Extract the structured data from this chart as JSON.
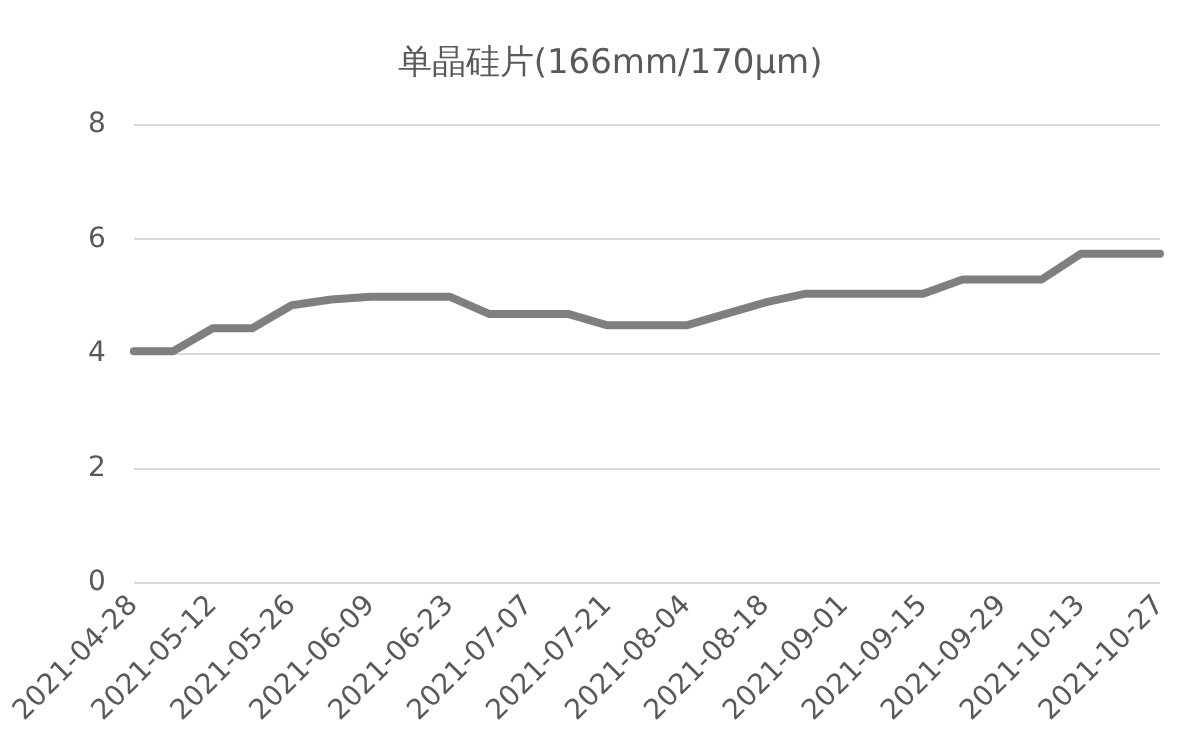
{
  "chart_data": {
    "type": "line",
    "title": "单晶硅片(166mm/170μm)",
    "categories": [
      "2021-04-28",
      null,
      "2021-05-12",
      null,
      "2021-05-26",
      null,
      "2021-06-09",
      null,
      "2021-06-23",
      null,
      "2021-07-07",
      null,
      "2021-07-21",
      null,
      "2021-08-04",
      null,
      "2021-08-18",
      null,
      "2021-09-01",
      null,
      "2021-09-15",
      null,
      "2021-09-29",
      null,
      "2021-10-13",
      null,
      "2021-10-27"
    ],
    "series": [
      {
        "color": "#7f7f7f",
        "values": [
          4.05,
          4.05,
          4.45,
          4.45,
          4.85,
          4.95,
          5.0,
          5.0,
          5.0,
          4.7,
          4.7,
          4.7,
          4.5,
          4.5,
          4.5,
          4.7,
          4.9,
          5.05,
          5.05,
          5.05,
          5.05,
          5.3,
          5.3,
          5.3,
          5.75,
          5.75,
          5.75
        ]
      }
    ],
    "ylim": [
      0,
      8
    ],
    "yticks": [
      0,
      2,
      4,
      6,
      8
    ],
    "grid": "y",
    "legend": false,
    "marker": "none",
    "line_style": "solid"
  }
}
